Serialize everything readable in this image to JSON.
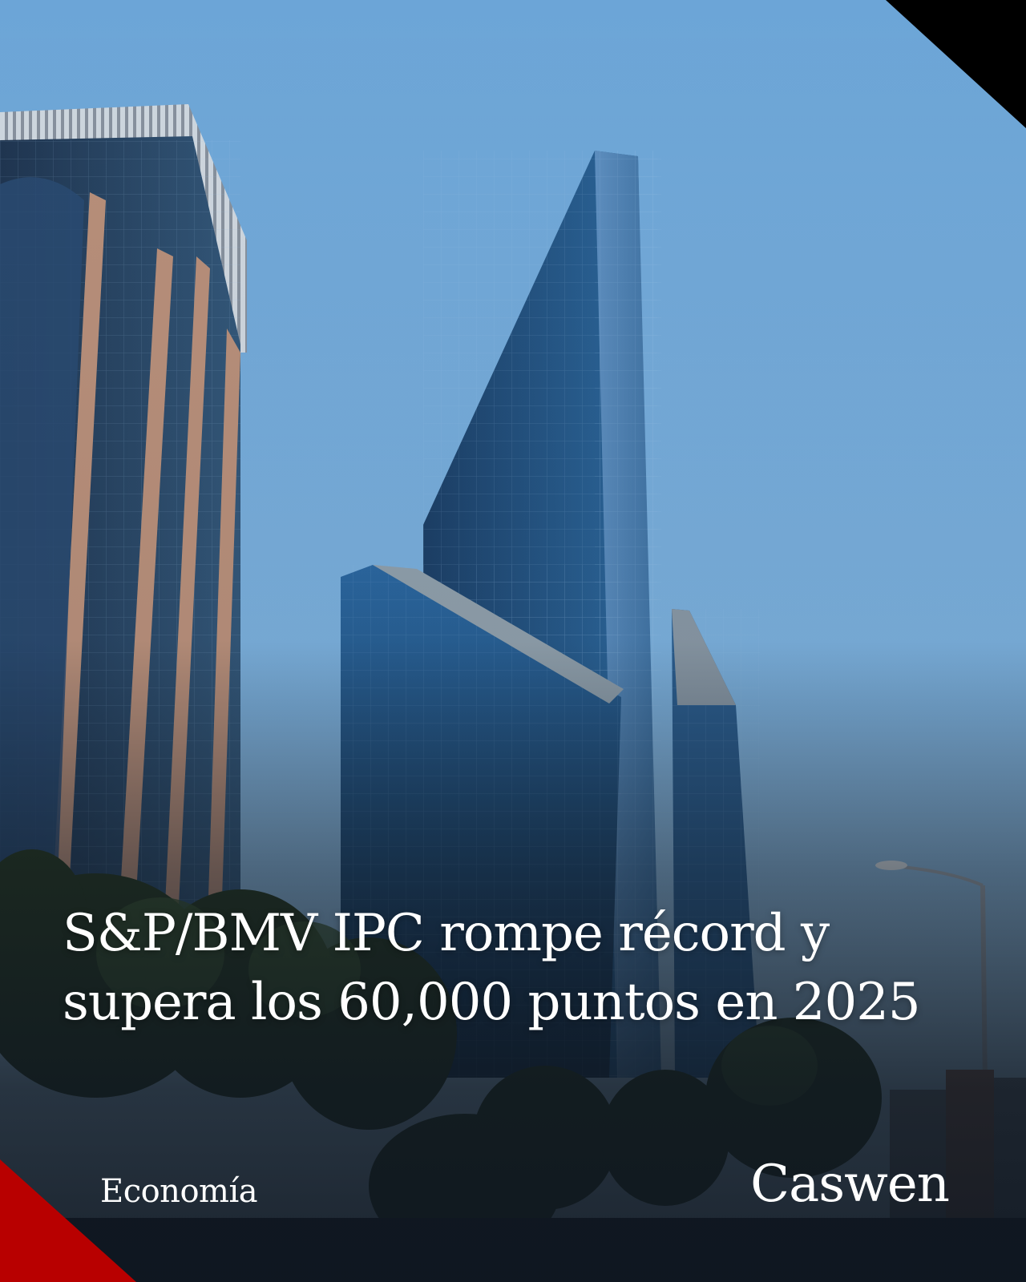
{
  "photo": {
    "subject": "skyscrapers-photo",
    "sky_color": "#79acd8",
    "overlay_color": "#0e1620"
  },
  "corners": {
    "top_right_color": "#000000",
    "bottom_left_color": "#b80000"
  },
  "headline": "S&P/BMV IPC rompe récord y supera los 60,000 puntos en 2025",
  "category": "Economía",
  "brand": "Caswen"
}
